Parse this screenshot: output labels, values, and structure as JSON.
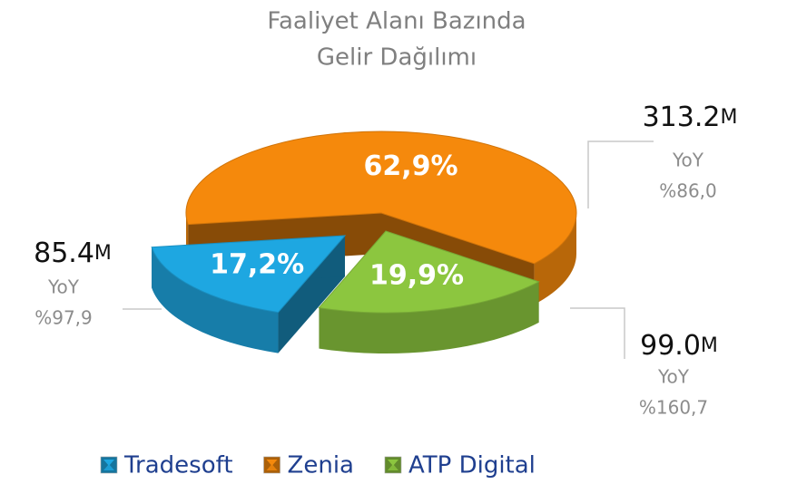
{
  "chart_data": {
    "type": "pie",
    "title": [
      "Faaliyet Alanı Bazında",
      "Gelir Dağılımı"
    ],
    "categories": [
      "Tradesoft",
      "Zenia",
      "ATP Digital"
    ],
    "values": [
      17.2,
      62.9,
      19.9
    ],
    "value_labels": [
      "17,2%",
      "62,9%",
      "19,9%"
    ],
    "colors": [
      "#1ea7e1",
      "#f5890c",
      "#8cc63f"
    ],
    "annotations": [
      {
        "amount": "85.4M",
        "yoy_label": "YoY",
        "yoy": "%97,9"
      },
      {
        "amount": "313.2M",
        "yoy_label": "YoY",
        "yoy": "%86,0"
      },
      {
        "amount": "99.0M",
        "yoy_label": "YoY",
        "yoy": "%160,7"
      }
    ],
    "legend": "bottom"
  }
}
